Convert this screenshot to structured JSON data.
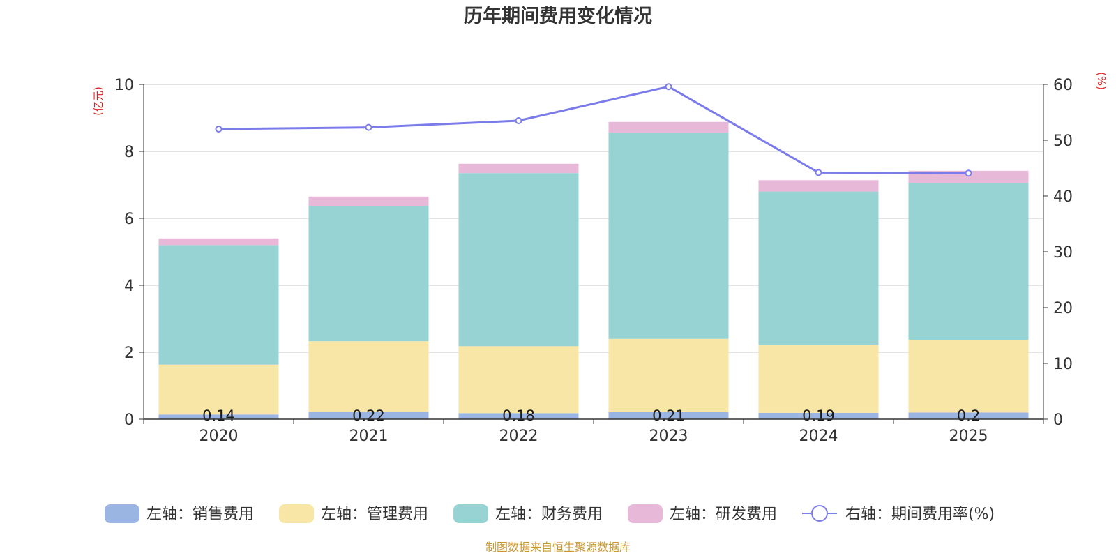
{
  "chart_data": {
    "type": "bar",
    "stacked": true,
    "title": "历年期间费用变化情况",
    "categories": [
      "2020",
      "2021",
      "2022",
      "2023",
      "2024",
      "2025"
    ],
    "left_axis": {
      "unit": "(亿元)",
      "ylim": [
        0,
        10
      ],
      "ticks": [
        0,
        2,
        4,
        6,
        8,
        10
      ]
    },
    "right_axis": {
      "unit": "(%)",
      "ylim": [
        0,
        60
      ],
      "ticks": [
        0,
        10,
        20,
        30,
        40,
        50,
        60
      ]
    },
    "series": [
      {
        "name": "左轴：销售费用",
        "axis": "left",
        "type": "bar",
        "color": "#9bb5e2",
        "values": [
          0.14,
          0.22,
          0.18,
          0.21,
          0.19,
          0.2
        ],
        "labels": [
          "0.14",
          "0.22",
          "0.18",
          "0.21",
          "0.19",
          "0.2"
        ]
      },
      {
        "name": "左轴：管理费用",
        "axis": "left",
        "type": "bar",
        "color": "#f7e6a6",
        "values": [
          1.49,
          2.11,
          2.0,
          2.19,
          2.04,
          2.17
        ]
      },
      {
        "name": "左轴：财务费用",
        "axis": "left",
        "type": "bar",
        "color": "#98d3d4",
        "values": [
          3.57,
          4.04,
          5.17,
          6.16,
          4.57,
          4.69
        ]
      },
      {
        "name": "左轴：研发费用",
        "axis": "left",
        "type": "bar",
        "color": "#e8b8d8",
        "values": [
          0.2,
          0.28,
          0.28,
          0.32,
          0.34,
          0.36
        ]
      },
      {
        "name": "右轴：期间费用率(%)",
        "axis": "right",
        "type": "line",
        "color": "#7b7cea",
        "values": [
          52.0,
          52.3,
          53.5,
          59.6,
          44.2,
          44.1
        ]
      }
    ]
  },
  "source_text": "制图数据来自恒生聚源数据库",
  "colors": {
    "grid": "#c8c8c8",
    "axis": "#333333",
    "unit_label": "#e02020",
    "source": "#c8962e"
  }
}
